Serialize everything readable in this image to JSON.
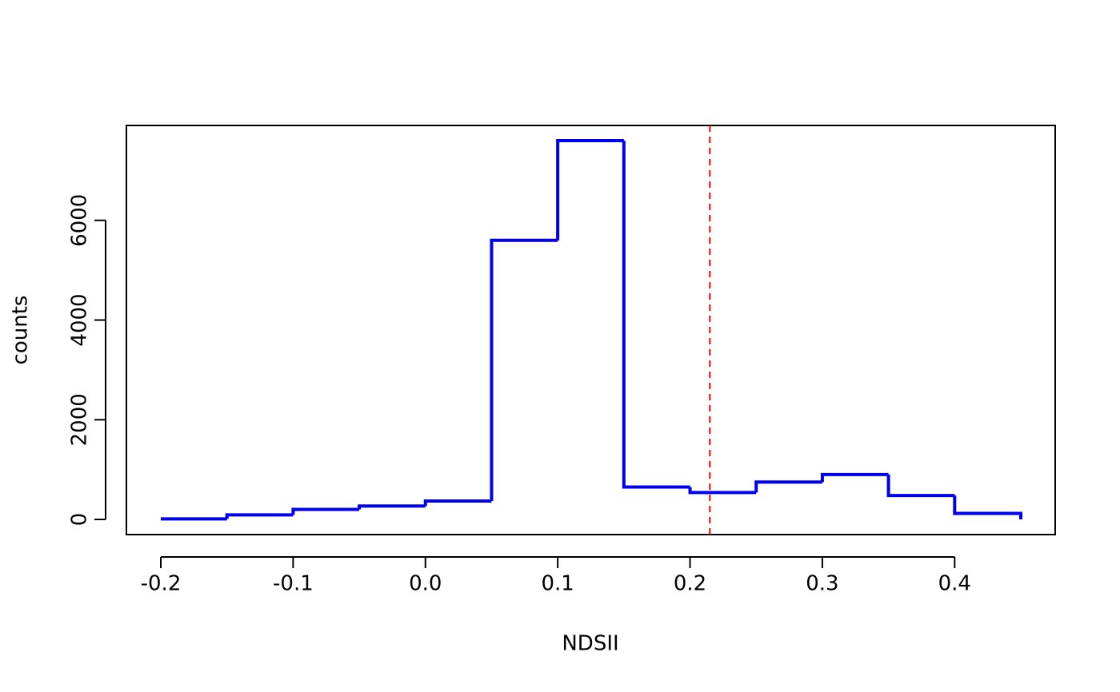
{
  "chart_data": {
    "type": "histogram",
    "x_label": "NDSII",
    "y_label": "counts",
    "bins": [
      -0.2,
      -0.15,
      -0.1,
      -0.05,
      0.0,
      0.05,
      0.1,
      0.15,
      0.2,
      0.25,
      0.3,
      0.35,
      0.4,
      0.45
    ],
    "counts": [
      10,
      90,
      200,
      270,
      370,
      5600,
      7600,
      650,
      540,
      750,
      900,
      480,
      120
    ],
    "color": "#0000ee",
    "vline": 0.215,
    "vline_color": "#ee0000",
    "xlim": [
      -0.226,
      0.476
    ],
    "xticks": [
      {
        "value": -0.2,
        "label": "-0.2"
      },
      {
        "value": -0.1,
        "label": "-0.1"
      },
      {
        "value": 0,
        "label": "0.0"
      },
      0.1,
      0.2,
      0.3,
      0.4
    ],
    "ylim": [
      -304,
      7904
    ],
    "yticks": [
      0,
      2000,
      4000,
      6000
    ],
    "grid": false
  }
}
